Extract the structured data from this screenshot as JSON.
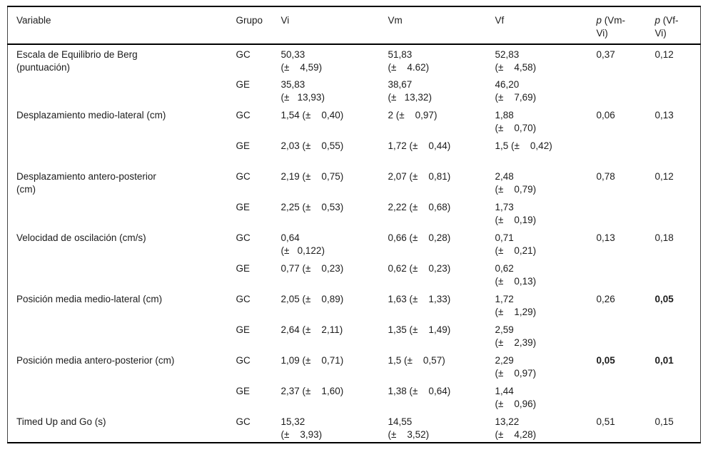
{
  "table": {
    "headers": {
      "variable": "Variable",
      "grupo": "Grupo",
      "vi": "Vi",
      "vm": "Vm",
      "vf": "Vf",
      "p_vm": {
        "italic": "p",
        "rest": " (Vm-\nVi)"
      },
      "p_vf": {
        "italic": "p",
        "rest": " (Vf-\nVi)"
      }
    },
    "rows": [
      {
        "variable": "Escala de Equilibrio de Berg\n(puntuación)",
        "sub": [
          {
            "grupo": "GC",
            "vi": "50,33\n(±    4,59)",
            "vm": "51,83\n(±    4.62)",
            "vf": "52,83\n(±    4,58)",
            "p_vm": "0,37",
            "p_vf": "0,12",
            "p_vm_bold": false,
            "p_vf_bold": false
          },
          {
            "grupo": "GE",
            "vi": "35,83\n(±   13,93)",
            "vm": "38,67\n(±   13,32)",
            "vf": "46,20\n(±    7,69)"
          }
        ]
      },
      {
        "variable": "Desplazamiento medio-lateral (cm)",
        "sub": [
          {
            "grupo": "GC",
            "vi": "1,54 (±    0,40)",
            "vm": "2 (±    0,97)",
            "vf": "1,88\n(±    0,70)",
            "p_vm": "0,06",
            "p_vf": "0,13",
            "p_vm_bold": false,
            "p_vf_bold": false
          },
          {
            "grupo": "GE",
            "vi": "2,03 (±    0,55)",
            "vm": "1,72 (±    0,44)",
            "vf": "1,5 (±    0,42)"
          }
        ]
      },
      {
        "variable": "Desplazamiento antero-posterior\n(cm)",
        "sub": [
          {
            "grupo": "GC",
            "vi": "2,19 (±    0,75)",
            "vm": "2,07 (±    0,81)",
            "vf": "2,48\n(±    0,79)",
            "p_vm": "0,78",
            "p_vf": "0,12",
            "p_vm_bold": false,
            "p_vf_bold": false
          },
          {
            "grupo": "GE",
            "vi": "2,25 (±    0,53)",
            "vm": "2,22 (±    0,68)",
            "vf": "1,73\n(±    0,19)"
          }
        ]
      },
      {
        "variable": "Velocidad de oscilación (cm/s)",
        "sub": [
          {
            "grupo": "GC",
            "vi": "0,64\n(±   0,122)",
            "vm": "0,66 (±    0,28)",
            "vf": "0,71\n(±    0,21)",
            "p_vm": "0,13",
            "p_vf": "0,18",
            "p_vm_bold": false,
            "p_vf_bold": false
          },
          {
            "grupo": "GE",
            "vi": "0,77 (±    0,23)",
            "vm": "0,62 (±    0,23)",
            "vf": "0,62\n(±    0,13)"
          }
        ]
      },
      {
        "variable": "Posición media medio-lateral (cm)",
        "sub": [
          {
            "grupo": "GC",
            "vi": "2,05 (±    0,89)",
            "vm": "1,63 (±    1,33)",
            "vf": "1,72\n(±    1,29)",
            "p_vm": "0,26",
            "p_vf": "0,05",
            "p_vm_bold": false,
            "p_vf_bold": true
          },
          {
            "grupo": "GE",
            "vi": "2,64 (±    2,11)",
            "vm": "1,35 (±    1,49)",
            "vf": "2,59\n(±    2,39)"
          }
        ]
      },
      {
        "variable": "Posición media antero-posterior (cm)",
        "sub": [
          {
            "grupo": "GC",
            "vi": "1,09 (±    0,71)",
            "vm": "1,5 (±    0,57)",
            "vf": "2,29\n(±    0,97)",
            "p_vm": "0,05",
            "p_vf": "0,01",
            "p_vm_bold": true,
            "p_vf_bold": true
          },
          {
            "grupo": "GE",
            "vi": "2,37 (±    1,60)",
            "vm": "1,38 (±    0,64)",
            "vf": "1,44\n(±    0,96)"
          }
        ]
      },
      {
        "variable": "Timed Up and Go (s)",
        "sub": [
          {
            "grupo": "GC",
            "vi": "15,32\n(±    3,93)",
            "vm": "14,55\n(±    3,52)",
            "vf": "13,22\n(±    4,28)",
            "p_vm": "0,51",
            "p_vf": "0,15",
            "p_vm_bold": false,
            "p_vf_bold": false
          }
        ]
      }
    ]
  }
}
